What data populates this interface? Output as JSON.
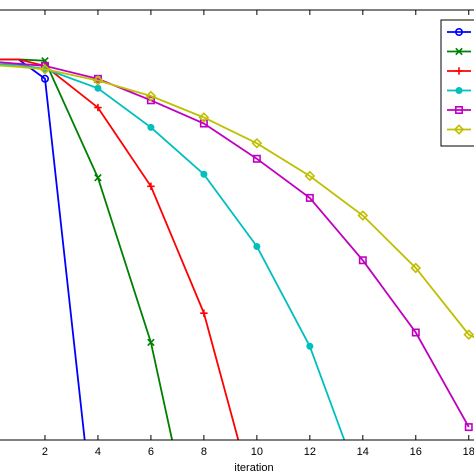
{
  "chart_data": {
    "type": "line",
    "xlabel": "iteration",
    "ylabel": "",
    "title": "",
    "xlim": [
      0,
      18.5
    ],
    "ylim": [
      0,
      1
    ],
    "x_ticks": [
      "2",
      "4",
      "6",
      "8",
      "10",
      "12",
      "14",
      "16",
      "18"
    ],
    "x_tick_values": [
      2,
      4,
      6,
      8,
      10,
      12,
      14,
      16,
      18
    ],
    "grid": false,
    "legend": "top-right",
    "series": [
      {
        "color": "#0000ff",
        "marker": "circle",
        "x": [
          0,
          1,
          2,
          3.5
        ],
        "y": [
          0.885,
          0.885,
          0.84,
          0.0
        ]
      },
      {
        "color": "#008000",
        "marker": "x",
        "x": [
          0,
          1,
          2,
          4,
          6,
          6.8
        ],
        "y": [
          0.885,
          0.885,
          0.882,
          0.61,
          0.227,
          0.0
        ]
      },
      {
        "color": "#ff0000",
        "marker": "plus",
        "x": [
          0,
          1,
          2,
          4,
          6,
          8,
          9.3
        ],
        "y": [
          0.885,
          0.885,
          0.87,
          0.773,
          0.59,
          0.295,
          0.0
        ]
      },
      {
        "color": "#00bfbf",
        "marker": "dot",
        "x": [
          0,
          1,
          2,
          4,
          6,
          8,
          10,
          12,
          13.3
        ],
        "y": [
          0.875,
          0.872,
          0.863,
          0.818,
          0.727,
          0.618,
          0.45,
          0.218,
          0.0
        ]
      },
      {
        "color": "#bf00bf",
        "marker": "square",
        "x": [
          0,
          1,
          2,
          4,
          6,
          8,
          10,
          12,
          14,
          16,
          18
        ],
        "y": [
          0.88,
          0.875,
          0.87,
          0.84,
          0.79,
          0.736,
          0.654,
          0.563,
          0.418,
          0.25,
          0.03
        ]
      },
      {
        "color": "#bfbf00",
        "marker": "diamond",
        "x": [
          0,
          1,
          2,
          4,
          6,
          8,
          10,
          12,
          14,
          16,
          18,
          18.5
        ],
        "y": [
          0.872,
          0.868,
          0.862,
          0.836,
          0.8,
          0.75,
          0.69,
          0.614,
          0.522,
          0.4,
          0.245,
          0.23
        ]
      }
    ]
  }
}
